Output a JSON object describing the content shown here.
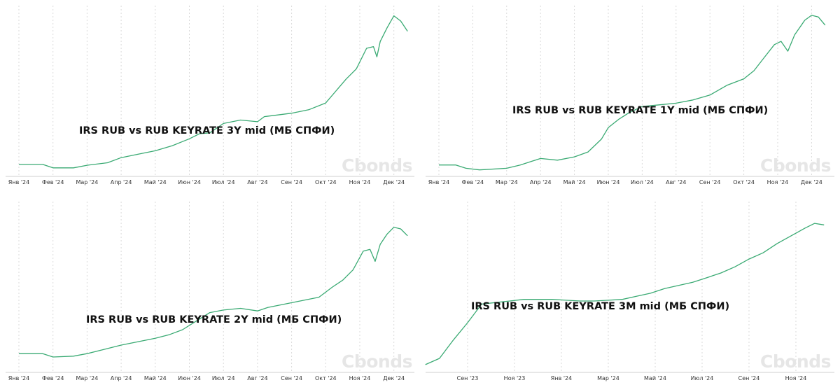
{
  "charts": [
    {
      "type": "line",
      "title": "IRS RUB vs RUB KEYRATE 3Y mid (МБ СПФИ)",
      "watermark": "Cbonds",
      "line_color": "#3aaa73",
      "grid": "vertical-dotted",
      "ticks": [
        "Янв '24",
        "Фев '24",
        "Мар '24",
        "Апр '24",
        "Май '24",
        "Июн '24",
        "Июл '24",
        "Авг '24",
        "Сен '24",
        "Окт '24",
        "Ноя '24",
        "Дек '24"
      ],
      "ylim": [
        13.5,
        23.5
      ],
      "points": [
        [
          0.0,
          14.2
        ],
        [
          0.7,
          14.2
        ],
        [
          1.0,
          14.0
        ],
        [
          1.6,
          14.0
        ],
        [
          2.0,
          14.15
        ],
        [
          2.6,
          14.3
        ],
        [
          3.0,
          14.6
        ],
        [
          3.5,
          14.8
        ],
        [
          4.0,
          15.0
        ],
        [
          4.5,
          15.3
        ],
        [
          5.0,
          15.7
        ],
        [
          5.3,
          16.0
        ],
        [
          5.6,
          16.05
        ],
        [
          6.0,
          16.6
        ],
        [
          6.5,
          16.8
        ],
        [
          7.0,
          16.7
        ],
        [
          7.2,
          17.0
        ],
        [
          7.6,
          17.1
        ],
        [
          8.0,
          17.2
        ],
        [
          8.5,
          17.4
        ],
        [
          9.0,
          17.8
        ],
        [
          9.3,
          18.5
        ],
        [
          9.6,
          19.2
        ],
        [
          9.9,
          19.8
        ],
        [
          10.2,
          21.0
        ],
        [
          10.4,
          21.1
        ],
        [
          10.5,
          20.5
        ],
        [
          10.6,
          21.4
        ],
        [
          10.8,
          22.2
        ],
        [
          11.0,
          22.9
        ],
        [
          11.2,
          22.6
        ],
        [
          11.4,
          22.0
        ]
      ]
    },
    {
      "type": "line",
      "title": "IRS RUB vs RUB KEYRATE 1Y mid (МБ СПФИ)",
      "watermark": "Cbonds",
      "line_color": "#3aaa73",
      "grid": "vertical-dotted",
      "ticks": [
        "Янв '24",
        "Фев '24",
        "Мар '24",
        "Апр '24",
        "Май '24",
        "Июн '24",
        "Июл '24",
        "Авг '24",
        "Сен '24",
        "Окт '24",
        "Ноя '24",
        "Дек '24"
      ],
      "ylim": [
        14.5,
        25.0
      ],
      "points": [
        [
          0.0,
          15.2
        ],
        [
          0.5,
          15.2
        ],
        [
          0.8,
          15.0
        ],
        [
          1.2,
          14.9
        ],
        [
          2.0,
          15.0
        ],
        [
          2.4,
          15.2
        ],
        [
          3.0,
          15.6
        ],
        [
          3.5,
          15.5
        ],
        [
          4.0,
          15.7
        ],
        [
          4.4,
          16.0
        ],
        [
          4.8,
          16.8
        ],
        [
          5.0,
          17.5
        ],
        [
          5.3,
          18.0
        ],
        [
          5.6,
          18.4
        ],
        [
          6.0,
          18.8
        ],
        [
          6.5,
          18.9
        ],
        [
          7.0,
          19.0
        ],
        [
          7.5,
          19.2
        ],
        [
          8.0,
          19.5
        ],
        [
          8.5,
          20.1
        ],
        [
          9.0,
          20.5
        ],
        [
          9.3,
          21.0
        ],
        [
          9.6,
          21.8
        ],
        [
          9.9,
          22.6
        ],
        [
          10.1,
          22.8
        ],
        [
          10.3,
          22.2
        ],
        [
          10.5,
          23.2
        ],
        [
          10.8,
          24.1
        ],
        [
          11.0,
          24.4
        ],
        [
          11.2,
          24.3
        ],
        [
          11.4,
          23.8
        ]
      ]
    },
    {
      "type": "line",
      "title": "IRS RUB vs RUB KEYRATE 2Y mid (МБ СПФИ)",
      "watermark": "Cbonds",
      "line_color": "#3aaa73",
      "grid": "vertical-dotted",
      "ticks": [
        "Янв '24",
        "Фев '24",
        "Мар '24",
        "Апр '24",
        "Май '24",
        "Июн '24",
        "Июл '24",
        "Авг '24",
        "Сен '24",
        "Окт '24",
        "Ноя '24",
        "Дек '24"
      ],
      "ylim": [
        13.5,
        23.5
      ],
      "points": [
        [
          0.0,
          14.6
        ],
        [
          0.7,
          14.6
        ],
        [
          1.0,
          14.4
        ],
        [
          1.6,
          14.45
        ],
        [
          2.0,
          14.6
        ],
        [
          2.5,
          14.85
        ],
        [
          3.0,
          15.1
        ],
        [
          3.5,
          15.3
        ],
        [
          4.0,
          15.5
        ],
        [
          4.4,
          15.7
        ],
        [
          4.8,
          16.0
        ],
        [
          5.2,
          16.5
        ],
        [
          5.6,
          17.0
        ],
        [
          6.0,
          17.15
        ],
        [
          6.5,
          17.25
        ],
        [
          7.0,
          17.1
        ],
        [
          7.3,
          17.3
        ],
        [
          7.8,
          17.5
        ],
        [
          8.3,
          17.7
        ],
        [
          8.8,
          17.9
        ],
        [
          9.2,
          18.5
        ],
        [
          9.5,
          18.9
        ],
        [
          9.8,
          19.5
        ],
        [
          10.1,
          20.6
        ],
        [
          10.3,
          20.7
        ],
        [
          10.45,
          20.0
        ],
        [
          10.6,
          21.0
        ],
        [
          10.8,
          21.6
        ],
        [
          11.0,
          22.0
        ],
        [
          11.2,
          21.9
        ],
        [
          11.4,
          21.5
        ]
      ]
    },
    {
      "type": "line",
      "title": "IRS RUB vs RUB KEYRATE 3M mid (МБ СПФИ)",
      "watermark": "Cbonds",
      "line_color": "#3aaa73",
      "grid": "vertical-dotted",
      "ticks": [
        "Сен '23",
        "Ноя '23",
        "Янв '24",
        "Мар '24",
        "Май '24",
        "Июл '24",
        "Сен '24",
        "Ноя '24"
      ],
      "ylim": [
        11.5,
        22.5
      ],
      "points": [
        [
          -0.9,
          12.0
        ],
        [
          -0.6,
          12.4
        ],
        [
          -0.3,
          13.6
        ],
        [
          0.0,
          14.7
        ],
        [
          0.3,
          15.9
        ],
        [
          0.6,
          16.0
        ],
        [
          0.9,
          16.1
        ],
        [
          1.2,
          16.2
        ],
        [
          1.5,
          16.2
        ],
        [
          1.8,
          16.2
        ],
        [
          2.1,
          16.15
        ],
        [
          2.4,
          16.1
        ],
        [
          2.7,
          16.1
        ],
        [
          3.0,
          16.15
        ],
        [
          3.3,
          16.2
        ],
        [
          3.6,
          16.4
        ],
        [
          3.9,
          16.6
        ],
        [
          4.2,
          16.9
        ],
        [
          4.5,
          17.1
        ],
        [
          4.8,
          17.3
        ],
        [
          5.1,
          17.6
        ],
        [
          5.4,
          17.9
        ],
        [
          5.7,
          18.3
        ],
        [
          6.0,
          18.8
        ],
        [
          6.3,
          19.2
        ],
        [
          6.6,
          19.8
        ],
        [
          6.9,
          20.3
        ],
        [
          7.2,
          20.8
        ],
        [
          7.4,
          21.1
        ],
        [
          7.6,
          21.0
        ]
      ]
    }
  ]
}
